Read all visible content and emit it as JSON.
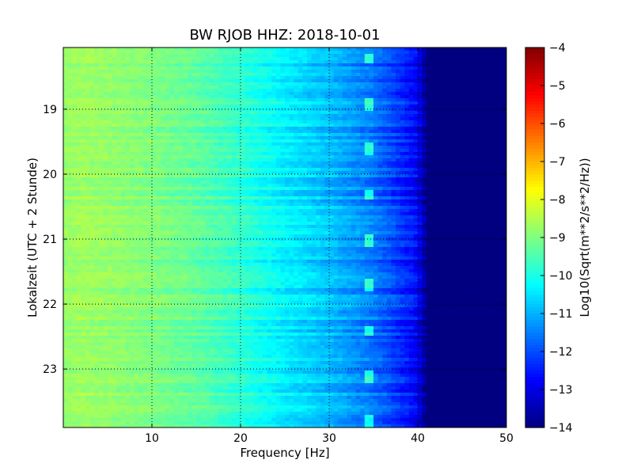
{
  "chart_data": {
    "type": "heatmap",
    "title": "BW RJOB HHZ: 2018-10-01",
    "xlabel": "Frequency [Hz]",
    "ylabel": "Lokalzeit (UTC + 2 Stunde)",
    "xlim": [
      0,
      50
    ],
    "ylim": [
      18.05,
      23.9
    ],
    "y_inverted": true,
    "x_ticks": [
      10,
      20,
      30,
      40,
      50
    ],
    "y_ticks": [
      19,
      20,
      21,
      22,
      23
    ],
    "grid": true,
    "colormap": "jet",
    "colorbar": {
      "label": "Log10(Sqrt(m**2/s**2/Hz))",
      "range": [
        -14,
        -4
      ],
      "ticks": [
        -4,
        -5,
        -6,
        -7,
        -8,
        -9,
        -10,
        -11,
        -12,
        -13,
        -14
      ]
    },
    "level_profile": {
      "frequency_hz": [
        0,
        2,
        5,
        10,
        15,
        20,
        25,
        30,
        35,
        38,
        40,
        41,
        50
      ],
      "log10_amplitude": [
        -8.8,
        -8.7,
        -8.8,
        -9.0,
        -9.3,
        -9.8,
        -10.4,
        -10.9,
        -11.6,
        -12.3,
        -12.8,
        -14.0,
        -14.0
      ]
    },
    "features": [
      {
        "frequency_hz": 34.5,
        "description": "recurring spectral line at ~34–35 Hz roughly every 0.7 h"
      }
    ]
  }
}
